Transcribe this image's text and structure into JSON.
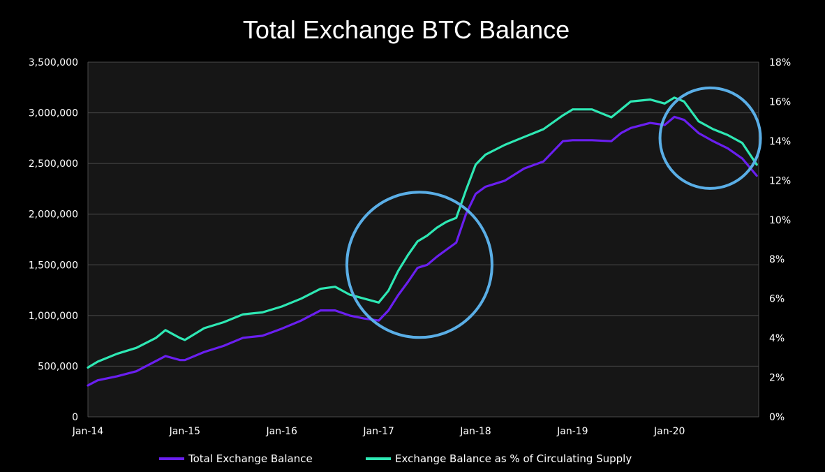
{
  "chart_data": {
    "type": "line",
    "title": "Total Exchange BTC Balance",
    "x_ticks": [
      "Jan-14",
      "Jan-15",
      "Jan-16",
      "Jan-17",
      "Jan-18",
      "Jan-19",
      "Jan-20"
    ],
    "y_left": {
      "range": [
        0,
        3500000
      ],
      "ticks": [
        "0",
        "500,000",
        "1,000,000",
        "1,500,000",
        "2,000,000",
        "2,500,000",
        "3,000,000",
        "3,500,000"
      ]
    },
    "y_right": {
      "range": [
        0,
        18
      ],
      "unit": "%",
      "ticks": [
        "0%",
        "2%",
        "4%",
        "6%",
        "8%",
        "10%",
        "12%",
        "14%",
        "16%",
        "18%"
      ]
    },
    "grid": "horizontal",
    "legend_position": "bottom",
    "colors": {
      "background": "#000000",
      "plot_bg": "#161616",
      "grid": "#4a4a4a",
      "highlight_circle": "#5aaee6"
    },
    "series": [
      {
        "name": "Total Exchange Balance",
        "axis": "left",
        "color": "#6a1ff0",
        "x": [
          2014.0,
          2014.1,
          2014.3,
          2014.5,
          2014.7,
          2014.8,
          2014.95,
          2015.0,
          2015.2,
          2015.4,
          2015.6,
          2015.8,
          2016.0,
          2016.2,
          2016.4,
          2016.55,
          2016.7,
          2016.85,
          2017.0,
          2017.1,
          2017.2,
          2017.3,
          2017.4,
          2017.5,
          2017.6,
          2017.7,
          2017.8,
          2017.9,
          2018.0,
          2018.1,
          2018.3,
          2018.5,
          2018.7,
          2018.9,
          2019.0,
          2019.2,
          2019.4,
          2019.5,
          2019.6,
          2019.8,
          2019.95,
          2020.05,
          2020.15,
          2020.3,
          2020.45,
          2020.6,
          2020.75,
          2020.9
        ],
        "values": [
          310000,
          360000,
          400000,
          450000,
          550000,
          600000,
          560000,
          560000,
          640000,
          700000,
          780000,
          800000,
          870000,
          950000,
          1050000,
          1050000,
          1000000,
          970000,
          950000,
          1050000,
          1200000,
          1330000,
          1470000,
          1500000,
          1580000,
          1650000,
          1720000,
          2000000,
          2200000,
          2270000,
          2330000,
          2450000,
          2520000,
          2720000,
          2730000,
          2730000,
          2720000,
          2800000,
          2850000,
          2900000,
          2880000,
          2960000,
          2930000,
          2800000,
          2720000,
          2650000,
          2550000,
          2380000
        ]
      },
      {
        "name": "Exchange Balance as % of Circulating Supply",
        "axis": "right",
        "color": "#2ee8b4",
        "x": [
          2014.0,
          2014.1,
          2014.3,
          2014.5,
          2014.7,
          2014.8,
          2014.95,
          2015.0,
          2015.2,
          2015.4,
          2015.6,
          2015.8,
          2016.0,
          2016.2,
          2016.4,
          2016.55,
          2016.7,
          2016.85,
          2017.0,
          2017.1,
          2017.2,
          2017.3,
          2017.4,
          2017.5,
          2017.6,
          2017.7,
          2017.8,
          2017.9,
          2018.0,
          2018.1,
          2018.3,
          2018.5,
          2018.7,
          2018.9,
          2019.0,
          2019.2,
          2019.4,
          2019.5,
          2019.6,
          2019.8,
          2019.95,
          2020.05,
          2020.15,
          2020.3,
          2020.45,
          2020.6,
          2020.75,
          2020.9
        ],
        "values": [
          2.5,
          2.8,
          3.2,
          3.5,
          4.0,
          4.4,
          4.0,
          3.9,
          4.5,
          4.8,
          5.2,
          5.3,
          5.6,
          6.0,
          6.5,
          6.6,
          6.2,
          6.0,
          5.8,
          6.4,
          7.4,
          8.2,
          8.9,
          9.2,
          9.6,
          9.9,
          10.1,
          11.5,
          12.8,
          13.3,
          13.8,
          14.2,
          14.6,
          15.3,
          15.6,
          15.6,
          15.2,
          15.6,
          16.0,
          16.1,
          15.9,
          16.2,
          16.0,
          15.0,
          14.6,
          14.3,
          13.9,
          12.8
        ]
      }
    ],
    "annotations": [
      {
        "shape": "circle",
        "around": "Jan-17 to Jan-18 surge"
      },
      {
        "shape": "circle",
        "around": "2020 decline"
      }
    ]
  }
}
